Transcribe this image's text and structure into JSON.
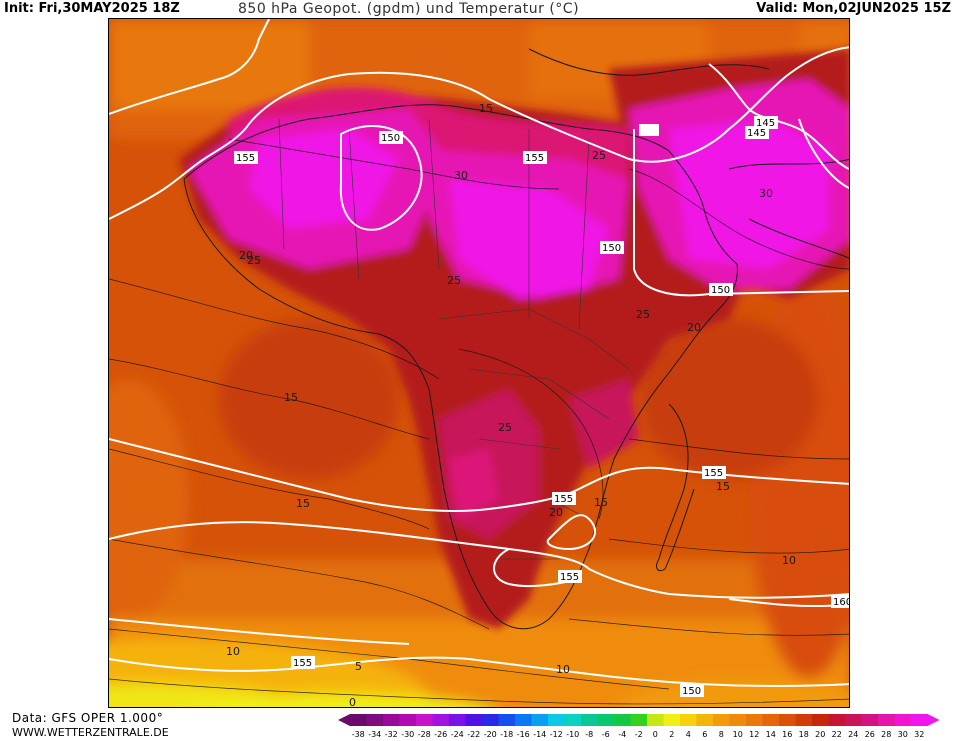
{
  "header": {
    "init": "Init: Fri,30MAY2025 18Z",
    "title": "850 hPa Geopot. (gpdm) und Temperatur (°C)",
    "valid": "Valid: Mon,02JUN2025 15Z"
  },
  "footer": {
    "data_source": "Data: GFS OPER 1.000°",
    "website": "WWW.WETTERZENTRALE.DE"
  },
  "legend": {
    "ticks": [
      "-38",
      "-34",
      "-32",
      "-30",
      "-28",
      "-26",
      "-24",
      "-22",
      "-20",
      "-18",
      "-16",
      "-14",
      "-12",
      "-10",
      "-8",
      "-6",
      "-4",
      "-2",
      "0",
      "2",
      "4",
      "6",
      "8",
      "10",
      "12",
      "14",
      "16",
      "18",
      "20",
      "22",
      "24",
      "26",
      "28",
      "30",
      "32"
    ],
    "colors": [
      "#6a0a6a",
      "#800a80",
      "#9a0a9a",
      "#b00ab0",
      "#c814c8",
      "#a014e0",
      "#7a14e6",
      "#5010e6",
      "#2828e6",
      "#1450f0",
      "#0a78f5",
      "#0aa0f0",
      "#0ac8e6",
      "#0ad2c0",
      "#0ac896",
      "#0ac86e",
      "#14c846",
      "#32d21e",
      "#c8e614",
      "#f0f014",
      "#f5d20a",
      "#f5b40a",
      "#f59a0a",
      "#f08a0a",
      "#eb780a",
      "#e6640a",
      "#dc500a",
      "#d23c0a",
      "#c8280a",
      "#c81432",
      "#c8145a",
      "#d21482",
      "#e614aa",
      "#f014d2",
      "#f014f0"
    ]
  },
  "map": {
    "contour_labels": {
      "geopotential": [
        "155",
        "155",
        "155",
        "155",
        "155",
        "155",
        "155",
        "150",
        "150",
        "150",
        "150",
        "145",
        "145",
        "160"
      ],
      "temperature": [
        "15",
        "25",
        "30",
        "25",
        "25",
        "25",
        "20",
        "15",
        "15",
        "25",
        "20",
        "15",
        "15",
        "10",
        "10",
        "10",
        "5",
        "0",
        "30",
        "20"
      ]
    }
  }
}
